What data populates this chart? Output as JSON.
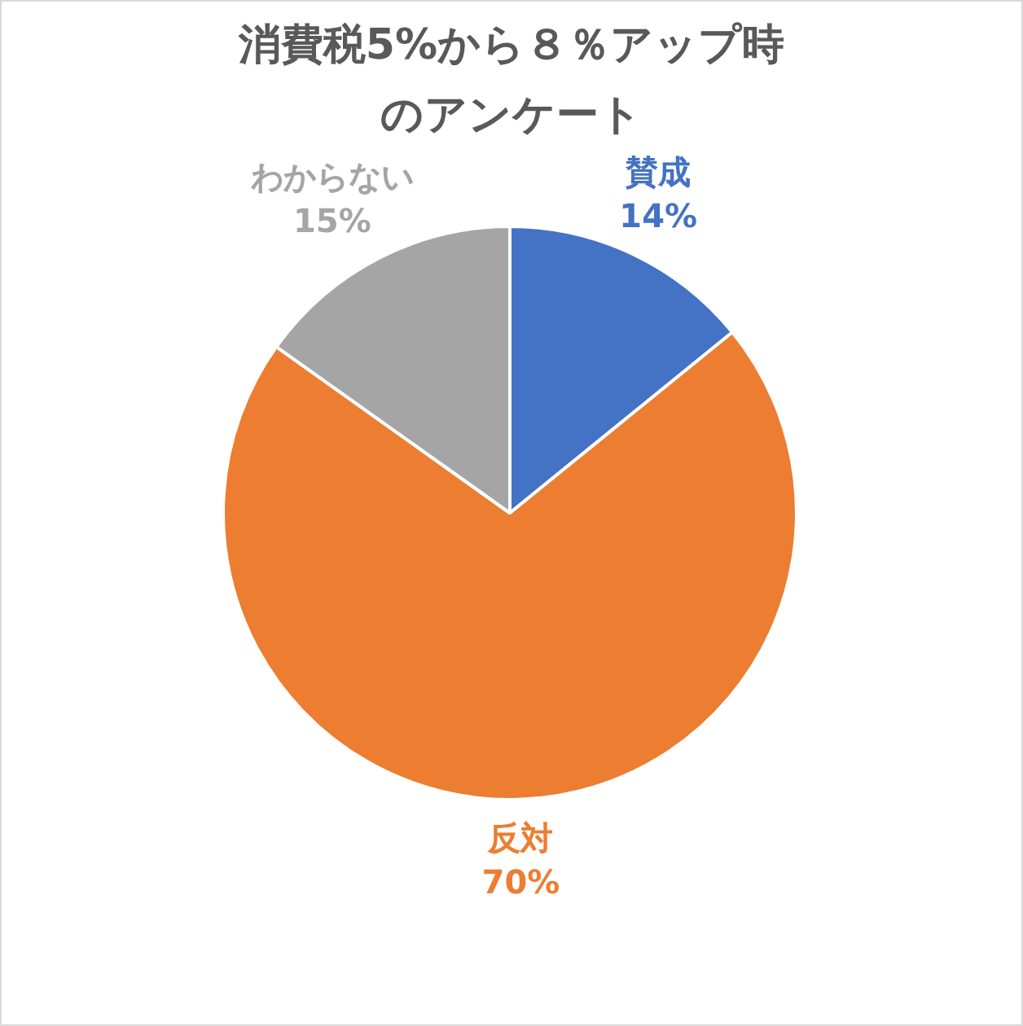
{
  "chart_data": {
    "type": "pie",
    "title": "消費税5%から８％アップ時のアンケート",
    "categories": [
      "賛成",
      "反対",
      "わからない"
    ],
    "values": [
      14,
      70,
      15
    ],
    "colors": [
      "#4472c4",
      "#ed7d31",
      "#a5a5a5"
    ],
    "value_labels": [
      "14%",
      "70%",
      "15%"
    ]
  }
}
